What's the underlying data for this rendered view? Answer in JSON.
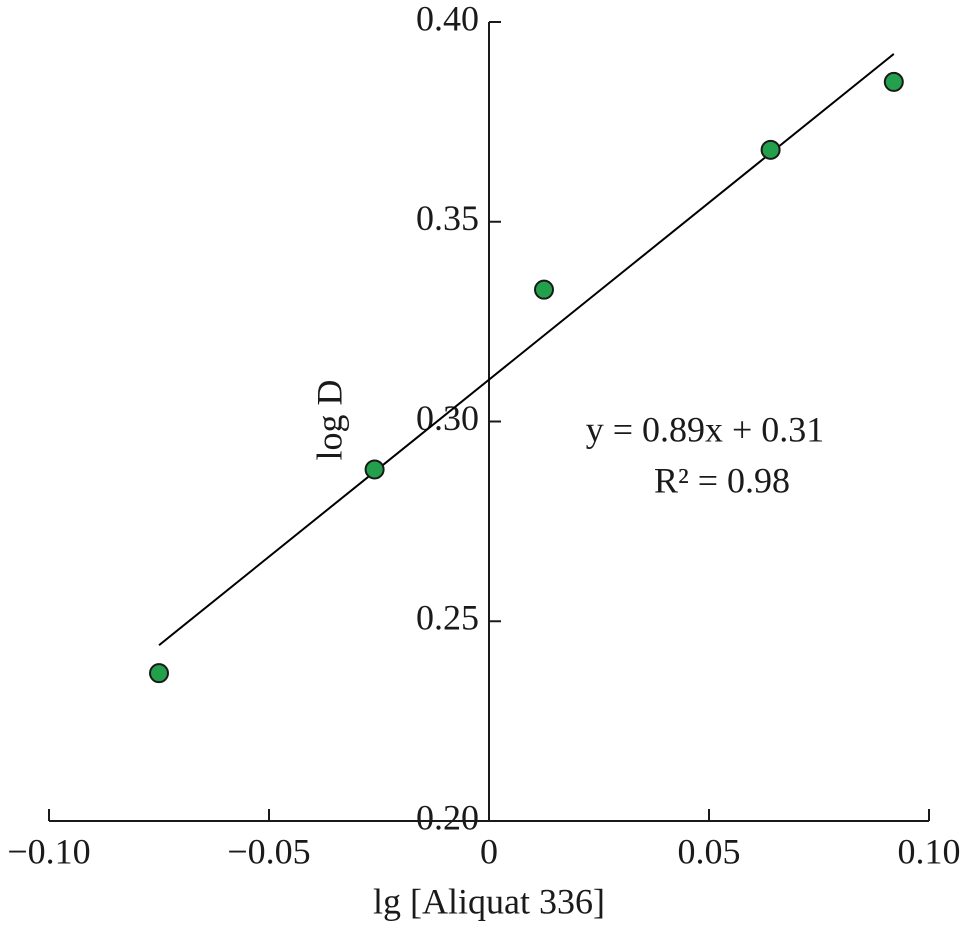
{
  "chart_data": {
    "type": "scatter",
    "xlabel": "lg [Aliquat 336]",
    "ylabel": "log D",
    "x": [
      -0.075,
      -0.026,
      0.0125,
      0.064,
      0.092
    ],
    "values": [
      0.237,
      0.288,
      0.333,
      0.368,
      0.385
    ],
    "color": "#22a04b",
    "fit_line": {
      "x": [
        -0.075,
        0.092
      ],
      "values": [
        0.244,
        0.392
      ],
      "color": "#000000"
    },
    "annotations": [
      "y = 0.89x + 0.31",
      "R² = 0.98"
    ],
    "xlim": [
      -0.1,
      0.1
    ],
    "ylim": [
      0.2,
      0.4
    ],
    "xticks": [
      {
        "value": -0.1,
        "label": "−0.10"
      },
      {
        "value": -0.05,
        "label": "−0.05"
      },
      0,
      0.05,
      {
        "value": 0.1,
        "label": "0.10"
      }
    ],
    "yticks": [
      {
        "value": 0.2,
        "label": "0.20"
      },
      0.25,
      {
        "value": 0.3,
        "label": "0.30"
      },
      0.35,
      {
        "value": 0.4,
        "label": "0.40"
      }
    ]
  }
}
